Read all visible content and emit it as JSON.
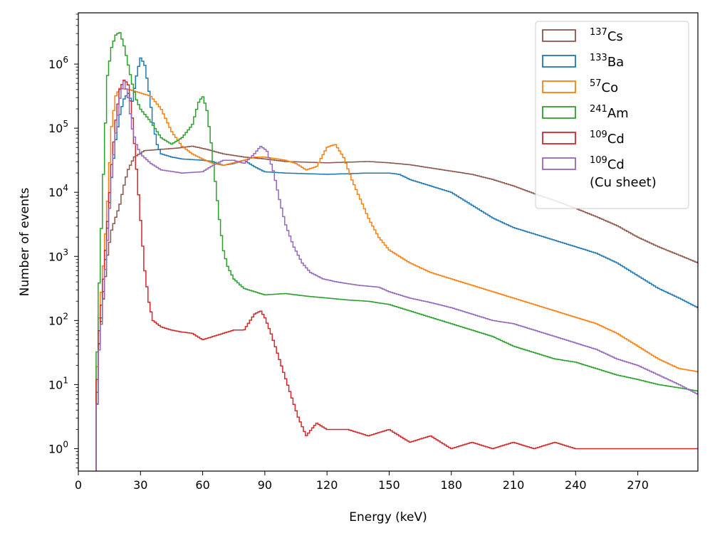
{
  "chart_data": {
    "type": "line",
    "style": "step-histogram",
    "xlabel": "Energy (keV)",
    "ylabel": "Number of events",
    "yscale": "log",
    "xlim": [
      0,
      299
    ],
    "ylim_log10": [
      -0.35,
      6.8
    ],
    "x_ticks": [
      0,
      30,
      60,
      90,
      120,
      150,
      180,
      210,
      240,
      270
    ],
    "y_ticks": [
      {
        "exp": 0,
        "base": "10",
        "sup": "0"
      },
      {
        "exp": 1,
        "base": "10",
        "sup": "1"
      },
      {
        "exp": 2,
        "base": "10",
        "sup": "2"
      },
      {
        "exp": 3,
        "base": "10",
        "sup": "3"
      },
      {
        "exp": 4,
        "base": "10",
        "sup": "4"
      },
      {
        "exp": 5,
        "base": "10",
        "sup": "5"
      },
      {
        "exp": 6,
        "base": "10",
        "sup": "6"
      }
    ],
    "legend_position": "top-right",
    "series": [
      {
        "name": "137Cs",
        "label_sup": "137",
        "label_main": "Cs",
        "label_line2": "",
        "color": "#8c564b",
        "points": [
          [
            8.6,
            -0.3
          ],
          [
            9,
            0.6
          ],
          [
            10,
            1.6
          ],
          [
            12,
            2.3
          ],
          [
            14,
            3.0
          ],
          [
            16,
            3.4
          ],
          [
            18,
            3.6
          ],
          [
            20,
            3.8
          ],
          [
            22,
            4.1
          ],
          [
            24,
            4.35
          ],
          [
            27,
            4.55
          ],
          [
            32,
            4.65
          ],
          [
            40,
            4.67
          ],
          [
            48,
            4.69
          ],
          [
            55,
            4.72
          ],
          [
            62,
            4.67
          ],
          [
            70,
            4.6
          ],
          [
            80,
            4.55
          ],
          [
            90,
            4.52
          ],
          [
            100,
            4.48
          ],
          [
            110,
            4.47
          ],
          [
            120,
            4.46
          ],
          [
            130,
            4.47
          ],
          [
            140,
            4.48
          ],
          [
            150,
            4.46
          ],
          [
            160,
            4.43
          ],
          [
            170,
            4.38
          ],
          [
            180,
            4.33
          ],
          [
            190,
            4.28
          ],
          [
            200,
            4.2
          ],
          [
            210,
            4.1
          ],
          [
            220,
            3.98
          ],
          [
            230,
            3.87
          ],
          [
            240,
            3.75
          ],
          [
            250,
            3.62
          ],
          [
            260,
            3.48
          ],
          [
            270,
            3.3
          ],
          [
            280,
            3.15
          ],
          [
            290,
            3.02
          ],
          [
            299,
            2.9
          ]
        ]
      },
      {
        "name": "133Ba",
        "label_sup": "133",
        "label_main": "Ba",
        "label_line2": "",
        "color": "#1f77b4",
        "points": [
          [
            8.6,
            -0.3
          ],
          [
            9,
            0.8
          ],
          [
            10,
            1.6
          ],
          [
            12,
            2.4
          ],
          [
            14,
            3.4
          ],
          [
            16,
            4.2
          ],
          [
            18,
            4.8
          ],
          [
            20,
            5.2
          ],
          [
            22,
            5.45
          ],
          [
            24,
            5.55
          ],
          [
            26,
            5.4
          ],
          [
            28,
            5.8
          ],
          [
            30,
            6.1
          ],
          [
            32,
            6.0
          ],
          [
            34,
            5.6
          ],
          [
            36,
            5.1
          ],
          [
            38,
            4.75
          ],
          [
            40,
            4.6
          ],
          [
            45,
            4.55
          ],
          [
            50,
            4.52
          ],
          [
            60,
            4.5
          ],
          [
            65,
            4.48
          ],
          [
            70,
            4.42
          ],
          [
            75,
            4.45
          ],
          [
            80,
            4.5
          ],
          [
            85,
            4.4
          ],
          [
            90,
            4.32
          ],
          [
            100,
            4.3
          ],
          [
            120,
            4.28
          ],
          [
            140,
            4.3
          ],
          [
            150,
            4.3
          ],
          [
            155,
            4.28
          ],
          [
            160,
            4.2
          ],
          [
            170,
            4.1
          ],
          [
            180,
            4.0
          ],
          [
            190,
            3.8
          ],
          [
            200,
            3.6
          ],
          [
            210,
            3.45
          ],
          [
            220,
            3.35
          ],
          [
            230,
            3.25
          ],
          [
            240,
            3.15
          ],
          [
            250,
            3.05
          ],
          [
            260,
            2.9
          ],
          [
            270,
            2.7
          ],
          [
            280,
            2.5
          ],
          [
            290,
            2.35
          ],
          [
            299,
            2.2
          ]
        ]
      },
      {
        "name": "57Co",
        "label_sup": "57",
        "label_main": "Co",
        "label_line2": "",
        "color": "#ff7f0e",
        "points": [
          [
            8.6,
            -0.3
          ],
          [
            9,
            1.2
          ],
          [
            10,
            2.0
          ],
          [
            12,
            2.8
          ],
          [
            14,
            3.8
          ],
          [
            16,
            5.0
          ],
          [
            18,
            5.5
          ],
          [
            20,
            5.62
          ],
          [
            25,
            5.6
          ],
          [
            30,
            5.55
          ],
          [
            35,
            5.5
          ],
          [
            40,
            5.3
          ],
          [
            45,
            4.95
          ],
          [
            50,
            4.72
          ],
          [
            55,
            4.6
          ],
          [
            60,
            4.52
          ],
          [
            65,
            4.45
          ],
          [
            70,
            4.42
          ],
          [
            80,
            4.5
          ],
          [
            85,
            4.55
          ],
          [
            90,
            4.55
          ],
          [
            100,
            4.5
          ],
          [
            105,
            4.45
          ],
          [
            110,
            4.35
          ],
          [
            115,
            4.4
          ],
          [
            120,
            4.7
          ],
          [
            124,
            4.75
          ],
          [
            128,
            4.55
          ],
          [
            132,
            4.2
          ],
          [
            136,
            3.9
          ],
          [
            140,
            3.6
          ],
          [
            145,
            3.3
          ],
          [
            150,
            3.1
          ],
          [
            160,
            2.9
          ],
          [
            170,
            2.75
          ],
          [
            180,
            2.65
          ],
          [
            190,
            2.55
          ],
          [
            200,
            2.45
          ],
          [
            210,
            2.35
          ],
          [
            220,
            2.25
          ],
          [
            230,
            2.15
          ],
          [
            240,
            2.05
          ],
          [
            250,
            1.95
          ],
          [
            260,
            1.8
          ],
          [
            270,
            1.6
          ],
          [
            280,
            1.4
          ],
          [
            290,
            1.25
          ],
          [
            299,
            1.2
          ]
        ]
      },
      {
        "name": "241Am",
        "label_sup": "241",
        "label_main": "Am",
        "label_line2": "",
        "color": "#2ca02c",
        "points": [
          [
            8.6,
            -0.3
          ],
          [
            9,
            1.4
          ],
          [
            10,
            2.5
          ],
          [
            12,
            4.2
          ],
          [
            14,
            5.8
          ],
          [
            16,
            6.25
          ],
          [
            18,
            6.45
          ],
          [
            20,
            6.5
          ],
          [
            22,
            6.3
          ],
          [
            24,
            6.0
          ],
          [
            26,
            5.7
          ],
          [
            28,
            5.45
          ],
          [
            30,
            5.3
          ],
          [
            35,
            5.1
          ],
          [
            40,
            4.85
          ],
          [
            45,
            4.75
          ],
          [
            50,
            4.85
          ],
          [
            55,
            5.05
          ],
          [
            58,
            5.4
          ],
          [
            60,
            5.5
          ],
          [
            62,
            5.3
          ],
          [
            64,
            4.8
          ],
          [
            66,
            4.2
          ],
          [
            68,
            3.6
          ],
          [
            70,
            3.1
          ],
          [
            72,
            2.85
          ],
          [
            75,
            2.65
          ],
          [
            80,
            2.5
          ],
          [
            90,
            2.4
          ],
          [
            100,
            2.42
          ],
          [
            110,
            2.38
          ],
          [
            120,
            2.35
          ],
          [
            130,
            2.32
          ],
          [
            140,
            2.3
          ],
          [
            150,
            2.25
          ],
          [
            160,
            2.15
          ],
          [
            170,
            2.05
          ],
          [
            180,
            1.95
          ],
          [
            190,
            1.85
          ],
          [
            200,
            1.75
          ],
          [
            210,
            1.6
          ],
          [
            220,
            1.5
          ],
          [
            230,
            1.4
          ],
          [
            240,
            1.35
          ],
          [
            250,
            1.25
          ],
          [
            260,
            1.15
          ],
          [
            270,
            1.08
          ],
          [
            280,
            1.0
          ],
          [
            290,
            0.95
          ],
          [
            299,
            0.9
          ]
        ]
      },
      {
        "name": "109Cd",
        "label_sup": "109",
        "label_main": "Cd",
        "label_line2": "",
        "color": "#d62728",
        "points": [
          [
            8.6,
            -0.3
          ],
          [
            9,
            1.0
          ],
          [
            10,
            1.8
          ],
          [
            12,
            2.6
          ],
          [
            14,
            3.5
          ],
          [
            16,
            4.4
          ],
          [
            18,
            5.1
          ],
          [
            20,
            5.6
          ],
          [
            22,
            5.75
          ],
          [
            24,
            5.7
          ],
          [
            26,
            5.2
          ],
          [
            28,
            4.4
          ],
          [
            30,
            3.6
          ],
          [
            32,
            2.8
          ],
          [
            34,
            2.3
          ],
          [
            36,
            2.0
          ],
          [
            40,
            1.9
          ],
          [
            45,
            1.85
          ],
          [
            50,
            1.82
          ],
          [
            55,
            1.8
          ],
          [
            60,
            1.7
          ],
          [
            65,
            1.75
          ],
          [
            70,
            1.8
          ],
          [
            75,
            1.85
          ],
          [
            80,
            1.85
          ],
          [
            85,
            2.1
          ],
          [
            88,
            2.15
          ],
          [
            90,
            2.05
          ],
          [
            93,
            1.8
          ],
          [
            96,
            1.5
          ],
          [
            100,
            1.1
          ],
          [
            103,
            0.8
          ],
          [
            106,
            0.5
          ],
          [
            110,
            0.2
          ],
          [
            115,
            0.4
          ],
          [
            120,
            0.3
          ],
          [
            130,
            0.3
          ],
          [
            140,
            0.2
          ],
          [
            150,
            0.3
          ],
          [
            160,
            0.1
          ],
          [
            170,
            0.2
          ],
          [
            180,
            0.0
          ],
          [
            190,
            0.1
          ],
          [
            200,
            0.0
          ],
          [
            210,
            0.1
          ],
          [
            220,
            0.0
          ],
          [
            230,
            0.1
          ],
          [
            240,
            0.0
          ],
          [
            250,
            0.0
          ],
          [
            260,
            0.0
          ],
          [
            270,
            0.0
          ],
          [
            280,
            0.0
          ],
          [
            290,
            0.0
          ],
          [
            299,
            0.0
          ]
        ]
      },
      {
        "name": "109Cd (Cu sheet)",
        "label_sup": "109",
        "label_main": "Cd",
        "label_line2": "(Cu sheet)",
        "color": "#9467bd",
        "points": [
          [
            8.6,
            -0.3
          ],
          [
            9,
            0.6
          ],
          [
            10,
            1.5
          ],
          [
            12,
            2.3
          ],
          [
            14,
            3.2
          ],
          [
            16,
            4.2
          ],
          [
            18,
            4.9
          ],
          [
            20,
            5.45
          ],
          [
            22,
            5.75
          ],
          [
            24,
            5.5
          ],
          [
            26,
            5.0
          ],
          [
            28,
            4.75
          ],
          [
            30,
            4.6
          ],
          [
            35,
            4.45
          ],
          [
            40,
            4.35
          ],
          [
            50,
            4.3
          ],
          [
            60,
            4.32
          ],
          [
            65,
            4.42
          ],
          [
            70,
            4.5
          ],
          [
            75,
            4.5
          ],
          [
            80,
            4.45
          ],
          [
            85,
            4.6
          ],
          [
            88,
            4.72
          ],
          [
            91,
            4.65
          ],
          [
            94,
            4.35
          ],
          [
            97,
            3.9
          ],
          [
            100,
            3.5
          ],
          [
            104,
            3.15
          ],
          [
            108,
            2.9
          ],
          [
            112,
            2.75
          ],
          [
            118,
            2.65
          ],
          [
            125,
            2.6
          ],
          [
            135,
            2.55
          ],
          [
            145,
            2.52
          ],
          [
            150,
            2.45
          ],
          [
            160,
            2.35
          ],
          [
            170,
            2.28
          ],
          [
            180,
            2.2
          ],
          [
            190,
            2.1
          ],
          [
            200,
            2.0
          ],
          [
            210,
            1.95
          ],
          [
            220,
            1.85
          ],
          [
            230,
            1.75
          ],
          [
            240,
            1.65
          ],
          [
            250,
            1.55
          ],
          [
            260,
            1.4
          ],
          [
            270,
            1.3
          ],
          [
            280,
            1.15
          ],
          [
            290,
            1.0
          ],
          [
            299,
            0.85
          ]
        ]
      }
    ]
  }
}
